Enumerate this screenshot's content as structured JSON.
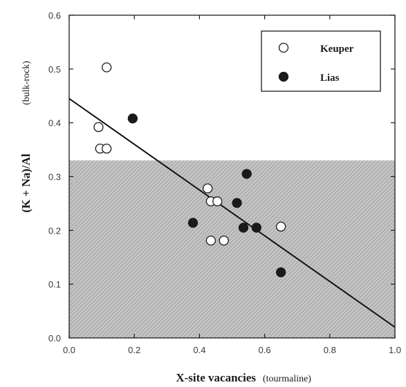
{
  "chart_data": {
    "type": "scatter",
    "title": "",
    "xlabel": "X-site vacancies",
    "xlabel_note": "(tourmaline)",
    "ylabel": "(K + Na)/Al",
    "ylabel_note": "(bulk-rock)",
    "xlim": [
      0.0,
      1.0
    ],
    "ylim": [
      0.0,
      0.6
    ],
    "x_ticks": [
      "0.0",
      "0.2",
      "0.4",
      "0.6",
      "0.8",
      "1.0"
    ],
    "y_ticks": [
      "0.0",
      "0.1",
      "0.2",
      "0.3",
      "0.4",
      "0.5",
      "0.6"
    ],
    "grid": false,
    "legend_position": "top-right",
    "shaded_region": {
      "y_from": 0.0,
      "y_to": 0.33,
      "color": "#b0b0b0"
    },
    "trend_line": {
      "x": [
        0.0,
        1.0
      ],
      "y": [
        0.445,
        0.02
      ]
    },
    "series": [
      {
        "name": "Keuper",
        "marker": "open-circle",
        "x": [
          0.115,
          0.09,
          0.095,
          0.115,
          0.425,
          0.435,
          0.455,
          0.435,
          0.475,
          0.65
        ],
        "y": [
          0.503,
          0.392,
          0.352,
          0.352,
          0.278,
          0.254,
          0.254,
          0.181,
          0.181,
          0.207
        ]
      },
      {
        "name": "Lias",
        "marker": "filled-circle",
        "x": [
          0.195,
          0.545,
          0.515,
          0.38,
          0.535,
          0.575,
          0.65
        ],
        "y": [
          0.408,
          0.305,
          0.251,
          0.214,
          0.205,
          0.205,
          0.122
        ]
      }
    ]
  }
}
